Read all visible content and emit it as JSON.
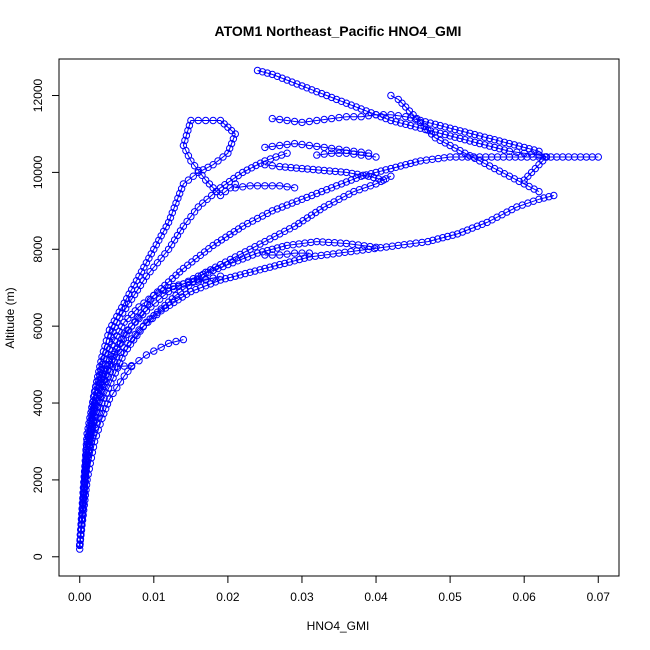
{
  "chart_data": {
    "type": "scatter",
    "title": "ATOM1 Northeast_Pacific HNO4_GMI",
    "xlabel": "HNO4_GMI",
    "ylabel": "Altitude (m)",
    "xlim": [
      -0.0028,
      0.0728
    ],
    "ylim": [
      -500,
      12950
    ],
    "x_ticks": [
      0.0,
      0.01,
      0.02,
      0.03,
      0.04,
      0.05,
      0.06,
      0.07
    ],
    "x_tick_labels": [
      "0.00",
      "0.01",
      "0.02",
      "0.03",
      "0.04",
      "0.05",
      "0.06",
      "0.07"
    ],
    "y_ticks": [
      0,
      2000,
      4000,
      6000,
      8000,
      10000,
      12000
    ],
    "y_tick_labels": [
      "0",
      "2000",
      "4000",
      "6000",
      "8000",
      "10000",
      "12000"
    ],
    "marker": "open-circle",
    "color": "#0000ff",
    "grid": false,
    "series": [
      {
        "x": [
          0.0,
          0.0005,
          0.001,
          0.002,
          0.003,
          0.004,
          0.005,
          0.007,
          0.009,
          0.012,
          0.014,
          0.016,
          0.019,
          0.022,
          0.025,
          0.028
        ],
        "y": [
          200,
          1500,
          3000,
          4200,
          5000,
          5600,
          6100,
          6700,
          7300,
          8000,
          8600,
          9100,
          9600,
          10000,
          10300,
          10500
        ]
      },
      {
        "x": [
          0.0,
          0.0005,
          0.001,
          0.002,
          0.003,
          0.004,
          0.006,
          0.008,
          0.01,
          0.012,
          0.013,
          0.014,
          0.016,
          0.018,
          0.02,
          0.021,
          0.019,
          0.017,
          0.015,
          0.014,
          0.015,
          0.017,
          0.019,
          0.021
        ],
        "y": [
          300,
          1800,
          3200,
          4300,
          5200,
          5900,
          6600,
          7300,
          8000,
          8700,
          9200,
          9700,
          10000,
          10200,
          10500,
          11000,
          11350,
          11350,
          11350,
          10700,
          10300,
          9800,
          9400,
          9700
        ]
      },
      {
        "x": [
          0.0,
          0.001,
          0.002,
          0.004,
          0.006,
          0.009,
          0.012,
          0.016,
          0.02,
          0.024,
          0.028,
          0.032,
          0.036,
          0.04
        ],
        "y": [
          300,
          2500,
          3800,
          5000,
          5800,
          6400,
          6900,
          7300,
          7600,
          7900,
          8100,
          8200,
          8150,
          8050
        ]
      },
      {
        "x": [
          0.0,
          0.001,
          0.003,
          0.005,
          0.008,
          0.011,
          0.015,
          0.019,
          0.023,
          0.027,
          0.031,
          0.035,
          0.039,
          0.043,
          0.047,
          0.051,
          0.055,
          0.059,
          0.062,
          0.064
        ],
        "y": [
          300,
          3000,
          4300,
          5200,
          5900,
          6400,
          6900,
          7200,
          7400,
          7600,
          7800,
          7900,
          8000,
          8100,
          8200,
          8400,
          8700,
          9100,
          9300,
          9400
        ]
      },
      {
        "x": [
          0.0,
          0.001,
          0.002,
          0.004,
          0.007,
          0.01,
          0.014,
          0.018,
          0.022,
          0.026,
          0.03,
          0.034,
          0.038,
          0.042,
          0.046,
          0.05,
          0.054,
          0.058,
          0.062,
          0.066,
          0.07
        ],
        "y": [
          300,
          2800,
          4000,
          5100,
          6000,
          6800,
          7500,
          8100,
          8600,
          9000,
          9300,
          9600,
          9900,
          10100,
          10300,
          10400,
          10400,
          10400,
          10400,
          10400,
          10400
        ]
      },
      {
        "x": [
          0.024,
          0.026,
          0.028,
          0.03,
          0.032,
          0.034,
          0.036,
          0.038,
          0.04,
          0.042,
          0.044,
          0.046,
          0.048,
          0.05,
          0.052,
          0.054,
          0.056,
          0.058,
          0.06,
          0.062,
          0.063
        ],
        "y": [
          12650,
          12550,
          12400,
          12250,
          12100,
          11950,
          11800,
          11650,
          11500,
          11350,
          11250,
          11150,
          11050,
          10950,
          10850,
          10750,
          10650,
          10550,
          10500,
          10450,
          10400
        ]
      },
      {
        "x": [
          0.026,
          0.028,
          0.03,
          0.032,
          0.034,
          0.036,
          0.038,
          0.04,
          0.042,
          0.044,
          0.046,
          0.048,
          0.05,
          0.052,
          0.054,
          0.056,
          0.058,
          0.06,
          0.062,
          0.063,
          0.062,
          0.061,
          0.06
        ],
        "y": [
          11400,
          11350,
          11300,
          11350,
          11400,
          11450,
          11450,
          11500,
          11500,
          11450,
          11350,
          11250,
          11150,
          11050,
          10950,
          10850,
          10750,
          10650,
          10550,
          10400,
          10200,
          10000,
          9800
        ]
      },
      {
        "x": [
          0.042,
          0.043,
          0.044,
          0.045,
          0.046,
          0.047,
          0.048,
          0.05,
          0.052,
          0.054,
          0.056,
          0.058,
          0.06,
          0.062
        ],
        "y": [
          12000,
          11900,
          11700,
          11500,
          11300,
          11100,
          10900,
          10700,
          10500,
          10300,
          10100,
          9900,
          9700,
          9500
        ]
      },
      {
        "x": [
          0.0,
          0.001,
          0.002,
          0.003,
          0.004,
          0.005,
          0.006,
          0.007,
          0.008,
          0.009,
          0.01,
          0.011,
          0.012,
          0.013,
          0.014
        ],
        "y": [
          300,
          2000,
          3000,
          3600,
          4100,
          4400,
          4700,
          4950,
          5100,
          5250,
          5350,
          5450,
          5550,
          5600,
          5650
        ]
      },
      {
        "x": [
          0.0,
          0.001,
          0.002,
          0.004,
          0.006,
          0.008,
          0.01,
          0.012,
          0.014,
          0.016,
          0.018
        ],
        "y": [
          300,
          2500,
          4000,
          5400,
          6100,
          6500,
          6800,
          7000,
          7100,
          7200,
          7250
        ]
      },
      {
        "x": [
          0.0,
          0.001,
          0.003,
          0.006,
          0.009,
          0.013,
          0.017,
          0.021,
          0.025,
          0.029,
          0.033,
          0.037,
          0.04,
          0.042
        ],
        "y": [
          300,
          2600,
          4000,
          5300,
          6100,
          6800,
          7400,
          7800,
          8200,
          8600,
          9100,
          9500,
          9700,
          9900
        ]
      },
      {
        "x": [
          0.005,
          0.006,
          0.007
        ],
        "y": [
          4950,
          4960,
          4970
        ]
      },
      {
        "x": [
          0.016,
          0.017,
          0.018,
          0.019
        ],
        "y": [
          7150,
          7200,
          7250,
          7300
        ]
      },
      {
        "x": [
          0.025,
          0.027,
          0.03,
          0.033,
          0.036,
          0.039,
          0.041
        ],
        "y": [
          10200,
          10150,
          10100,
          10050,
          10000,
          9900,
          9800
        ]
      },
      {
        "x": [
          0.021,
          0.023,
          0.025,
          0.027,
          0.029
        ],
        "y": [
          9600,
          9650,
          9650,
          9650,
          9600
        ]
      },
      {
        "x": [
          0.025,
          0.027,
          0.029,
          0.031,
          0.033,
          0.035,
          0.037,
          0.039
        ],
        "y": [
          10650,
          10700,
          10750,
          10700,
          10650,
          10600,
          10550,
          10500
        ]
      },
      {
        "x": [
          0.032,
          0.034,
          0.036,
          0.038,
          0.04
        ],
        "y": [
          10450,
          10500,
          10500,
          10450,
          10400
        ]
      },
      {
        "x": [
          0.025,
          0.027,
          0.029,
          0.031
        ],
        "y": [
          7850,
          7850,
          7900,
          7900
        ]
      }
    ]
  }
}
